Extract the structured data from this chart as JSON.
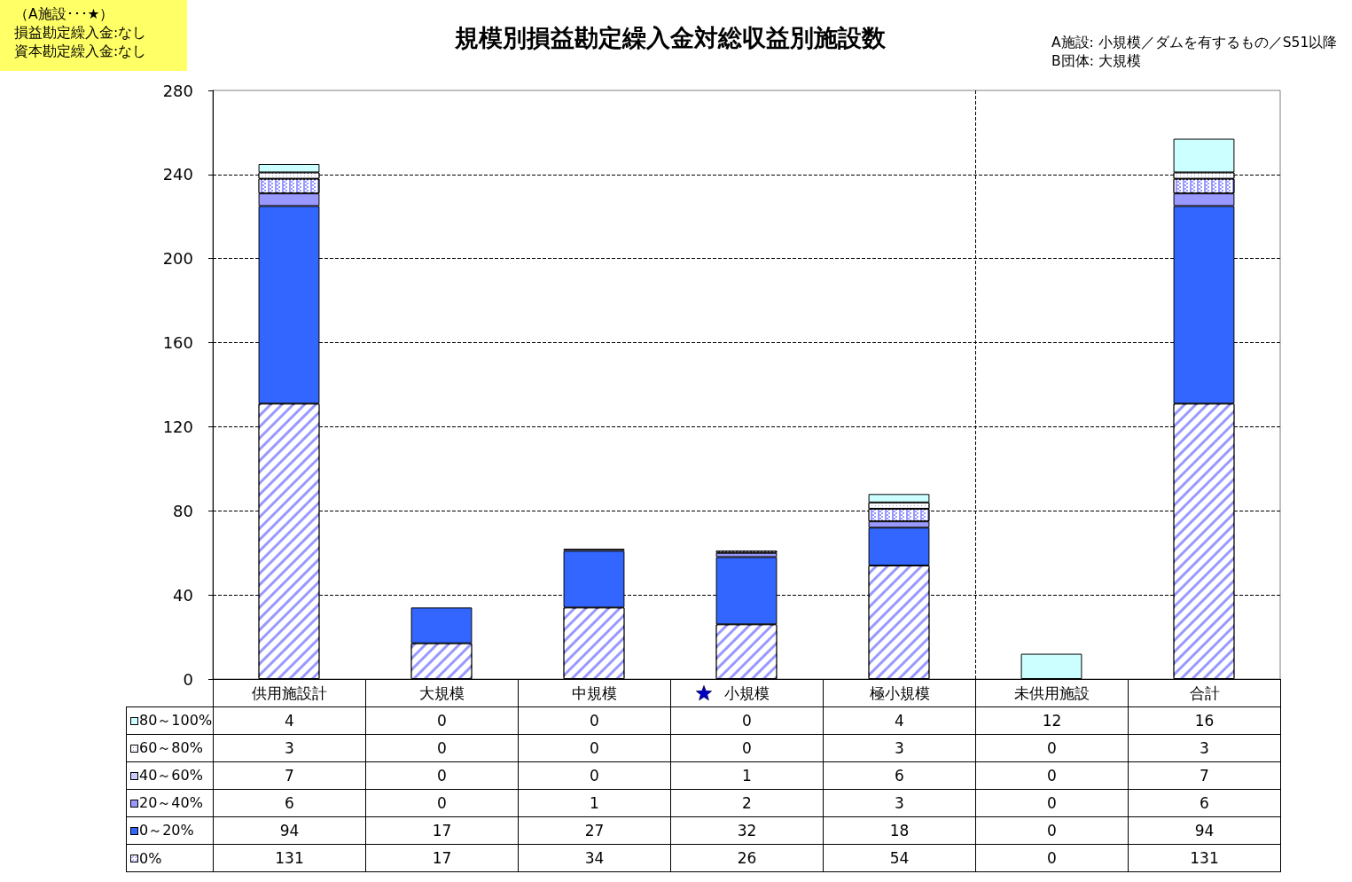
{
  "chart_data": {
    "type": "bar",
    "title": "規模別損益勘定繰入金対総収益別施設数",
    "annotations": [
      "（A施設･･･★）",
      "損益勘定繰入金:なし",
      "資本勘定繰入金:なし",
      "A施設: 小規模／ダムを有するもの／S51以降",
      "B団体: 大規模"
    ],
    "categories": [
      "供用施設計",
      "大規模",
      "中規模",
      "小規模",
      "極小規模",
      "未供用施設",
      "合計"
    ],
    "stacked": true,
    "series": [
      {
        "name": "0%",
        "color": "#9999ff",
        "values": [
          131,
          17,
          34,
          26,
          54,
          0,
          131
        ]
      },
      {
        "name": "0～20%",
        "color": "#3366ff",
        "values": [
          94,
          17,
          27,
          32,
          18,
          0,
          94
        ]
      },
      {
        "name": "20～40%",
        "color": "#9999ff",
        "values": [
          6,
          0,
          1,
          2,
          3,
          0,
          6
        ]
      },
      {
        "name": "40～60%",
        "color": "#9999ff",
        "values": [
          7,
          0,
          0,
          1,
          6,
          0,
          7
        ]
      },
      {
        "name": "60～80%",
        "color": "#9999ff",
        "values": [
          3,
          0,
          0,
          0,
          3,
          0,
          3
        ]
      },
      {
        "name": "80～100%",
        "color": "#ccffff",
        "values": [
          4,
          0,
          0,
          0,
          4,
          12,
          16
        ]
      }
    ],
    "ylim": [
      0,
      280
    ],
    "yticks": [
      0,
      40,
      80,
      120,
      160,
      200,
      240,
      280
    ],
    "grid": "y",
    "legend": "bottom",
    "data_labels": true
  }
}
